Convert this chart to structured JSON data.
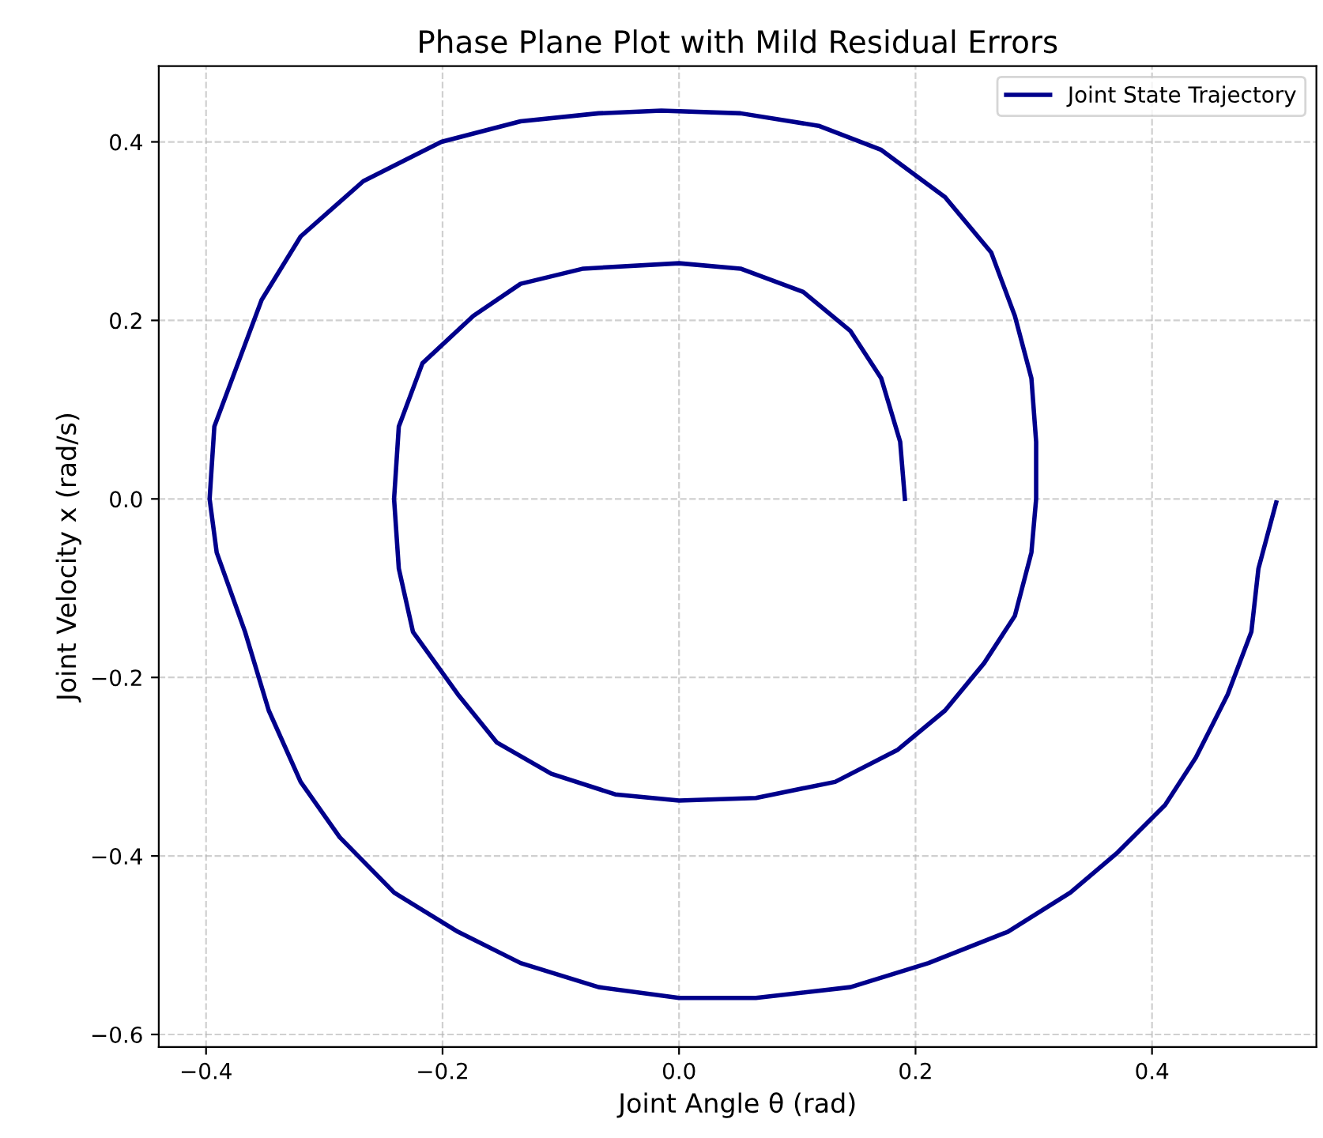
{
  "chart_data": {
    "type": "line",
    "title": "Phase Plane Plot with Mild Residual Errors",
    "xlabel": "Joint Angle θ (rad)",
    "ylabel": "Joint Velocity x (rad/s)",
    "xlim": [
      -0.44,
      0.539
    ],
    "ylim": [
      -0.614,
      0.485
    ],
    "xticks": [
      {
        "value": -0.4,
        "label": "−0.4"
      },
      {
        "value": -0.2,
        "label": "−0.2"
      },
      {
        "value": 0.0,
        "label": "0.0"
      },
      {
        "value": 0.2,
        "label": "0.2"
      },
      {
        "value": 0.4,
        "label": "0.4"
      }
    ],
    "yticks": [
      {
        "value": -0.6,
        "label": "−0.6"
      },
      {
        "value": -0.4,
        "label": "−0.4"
      },
      {
        "value": -0.2,
        "label": "−0.2"
      },
      {
        "value": 0.0,
        "label": "0.0"
      },
      {
        "value": 0.2,
        "label": "0.2"
      },
      {
        "value": 0.4,
        "label": "0.4"
      }
    ],
    "grid": true,
    "legend": "top right",
    "line_style": "solid",
    "marker": "none",
    "series": [
      {
        "name": "Joint State Trajectory",
        "color": "#00008b",
        "x": [
          0.505,
          0.49,
          0.484,
          0.464,
          0.437,
          0.411,
          0.371,
          0.331,
          0.278,
          0.211,
          0.145,
          0.065,
          0.0,
          -0.068,
          -0.134,
          -0.187,
          -0.241,
          -0.287,
          -0.32,
          -0.347,
          -0.367,
          -0.391,
          -0.397,
          -0.393,
          -0.373,
          -0.353,
          -0.32,
          -0.267,
          -0.201,
          -0.134,
          -0.068,
          -0.015,
          0.052,
          0.118,
          0.171,
          0.225,
          0.264,
          0.284,
          0.298,
          0.302,
          0.302,
          0.298,
          0.284,
          0.258,
          0.225,
          0.185,
          0.132,
          0.065,
          0.0,
          -0.054,
          -0.108,
          -0.154,
          -0.187,
          -0.225,
          -0.237,
          -0.241,
          -0.237,
          -0.217,
          -0.174,
          -0.134,
          -0.081,
          0.0,
          0.052,
          0.105,
          0.145,
          0.171,
          0.187,
          0.191
        ],
        "values": [
          -0.004,
          -0.078,
          -0.149,
          -0.219,
          -0.29,
          -0.343,
          -0.396,
          -0.441,
          -0.485,
          -0.52,
          -0.547,
          -0.559,
          -0.559,
          -0.547,
          -0.52,
          -0.485,
          -0.441,
          -0.379,
          -0.317,
          -0.237,
          -0.149,
          -0.06,
          0.0,
          0.081,
          0.152,
          0.223,
          0.294,
          0.356,
          0.4,
          0.423,
          0.432,
          0.435,
          0.432,
          0.418,
          0.391,
          0.338,
          0.276,
          0.205,
          0.135,
          0.064,
          0.0,
          -0.06,
          -0.131,
          -0.184,
          -0.237,
          -0.281,
          -0.317,
          -0.335,
          -0.338,
          -0.331,
          -0.308,
          -0.273,
          -0.219,
          -0.149,
          -0.078,
          0.0,
          0.081,
          0.152,
          0.205,
          0.241,
          0.258,
          0.264,
          0.258,
          0.232,
          0.188,
          0.135,
          0.064,
          0.0
        ]
      }
    ]
  }
}
